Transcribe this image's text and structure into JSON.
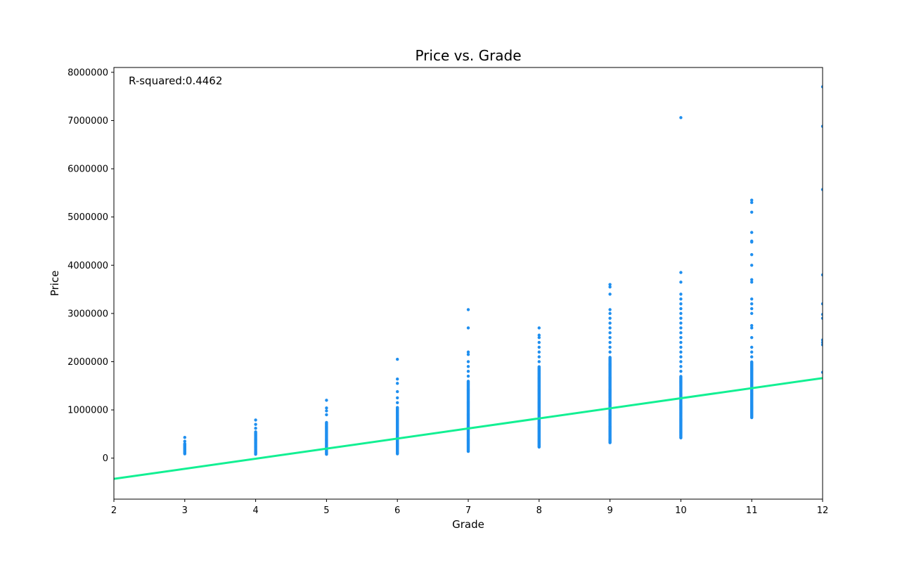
{
  "chart_data": {
    "type": "scatter",
    "title": "Price vs. Grade",
    "xlabel": "Grade",
    "ylabel": "Price",
    "xlim": [
      2,
      12
    ],
    "ylim": [
      -850000,
      8100000
    ],
    "x_ticks": [
      2,
      3,
      4,
      5,
      6,
      7,
      8,
      9,
      10,
      11,
      12
    ],
    "x_tick_labels": [
      "2",
      "3",
      "4",
      "5",
      "6",
      "7",
      "8",
      "9",
      "10",
      "11",
      "12"
    ],
    "y_ticks": [
      0,
      1000000,
      2000000,
      3000000,
      4000000,
      5000000,
      6000000,
      7000000,
      8000000
    ],
    "y_tick_labels": [
      "0",
      "1000000",
      "2000000",
      "3000000",
      "4000000",
      "5000000",
      "6000000",
      "7000000",
      "8000000"
    ],
    "grid": false,
    "annotation": "R-squared:0.4462",
    "colors": {
      "points": "#1f8fef",
      "regression_line": "#12f093"
    },
    "regression_line": {
      "x": [
        2,
        12
      ],
      "y": [
        -430000,
        1660000
      ]
    },
    "series": [
      {
        "values": [
          {
            "x": 3,
            "min": 90000,
            "max": 300000,
            "outliers": [
              350000,
              430000
            ]
          },
          {
            "x": 4,
            "min": 80000,
            "max": 550000,
            "outliers": [
              620000,
              700000,
              790000
            ]
          },
          {
            "x": 5,
            "min": 80000,
            "max": 750000,
            "outliers": [
              900000,
              980000,
              1040000,
              1200000
            ]
          },
          {
            "x": 6,
            "min": 90000,
            "max": 1050000,
            "outliers": [
              1150000,
              1250000,
              1380000,
              1550000,
              1640000,
              2050000
            ]
          },
          {
            "x": 7,
            "min": 140000,
            "max": 1600000,
            "outliers": [
              1700000,
              1800000,
              1900000,
              2000000,
              2150000,
              2200000,
              2700000,
              3080000
            ]
          },
          {
            "x": 8,
            "min": 230000,
            "max": 1900000,
            "outliers": [
              2000000,
              2100000,
              2200000,
              2300000,
              2400000,
              2500000,
              2550000,
              2700000
            ]
          },
          {
            "x": 9,
            "min": 320000,
            "max": 2100000,
            "outliers": [
              2200000,
              2300000,
              2400000,
              2500000,
              2600000,
              2700000,
              2800000,
              2900000,
              3000000,
              3080000,
              3400000,
              3550000,
              3600000
            ]
          },
          {
            "x": 10,
            "min": 420000,
            "max": 1700000,
            "outliers": [
              1800000,
              1900000,
              2000000,
              2100000,
              2200000,
              2300000,
              2400000,
              2500000,
              2600000,
              2700000,
              2800000,
              2900000,
              3000000,
              3100000,
              3200000,
              3300000,
              3400000,
              3650000,
              3850000,
              7060000
            ]
          },
          {
            "x": 11,
            "min": 840000,
            "max": 2000000,
            "outliers": [
              2100000,
              2200000,
              2300000,
              2500000,
              2700000,
              2750000,
              3000000,
              3100000,
              3200000,
              3300000,
              3650000,
              3700000,
              4000000,
              4220000,
              4480000,
              4500000,
              4680000,
              5100000,
              5300000,
              5350000
            ]
          },
          {
            "x": 12,
            "min": 1780000,
            "max": 1780000,
            "outliers": [
              2350000,
              2400000,
              2450000,
              2900000,
              2980000,
              3200000,
              3800000,
              5570000,
              6880000,
              7700000
            ]
          }
        ]
      }
    ]
  }
}
